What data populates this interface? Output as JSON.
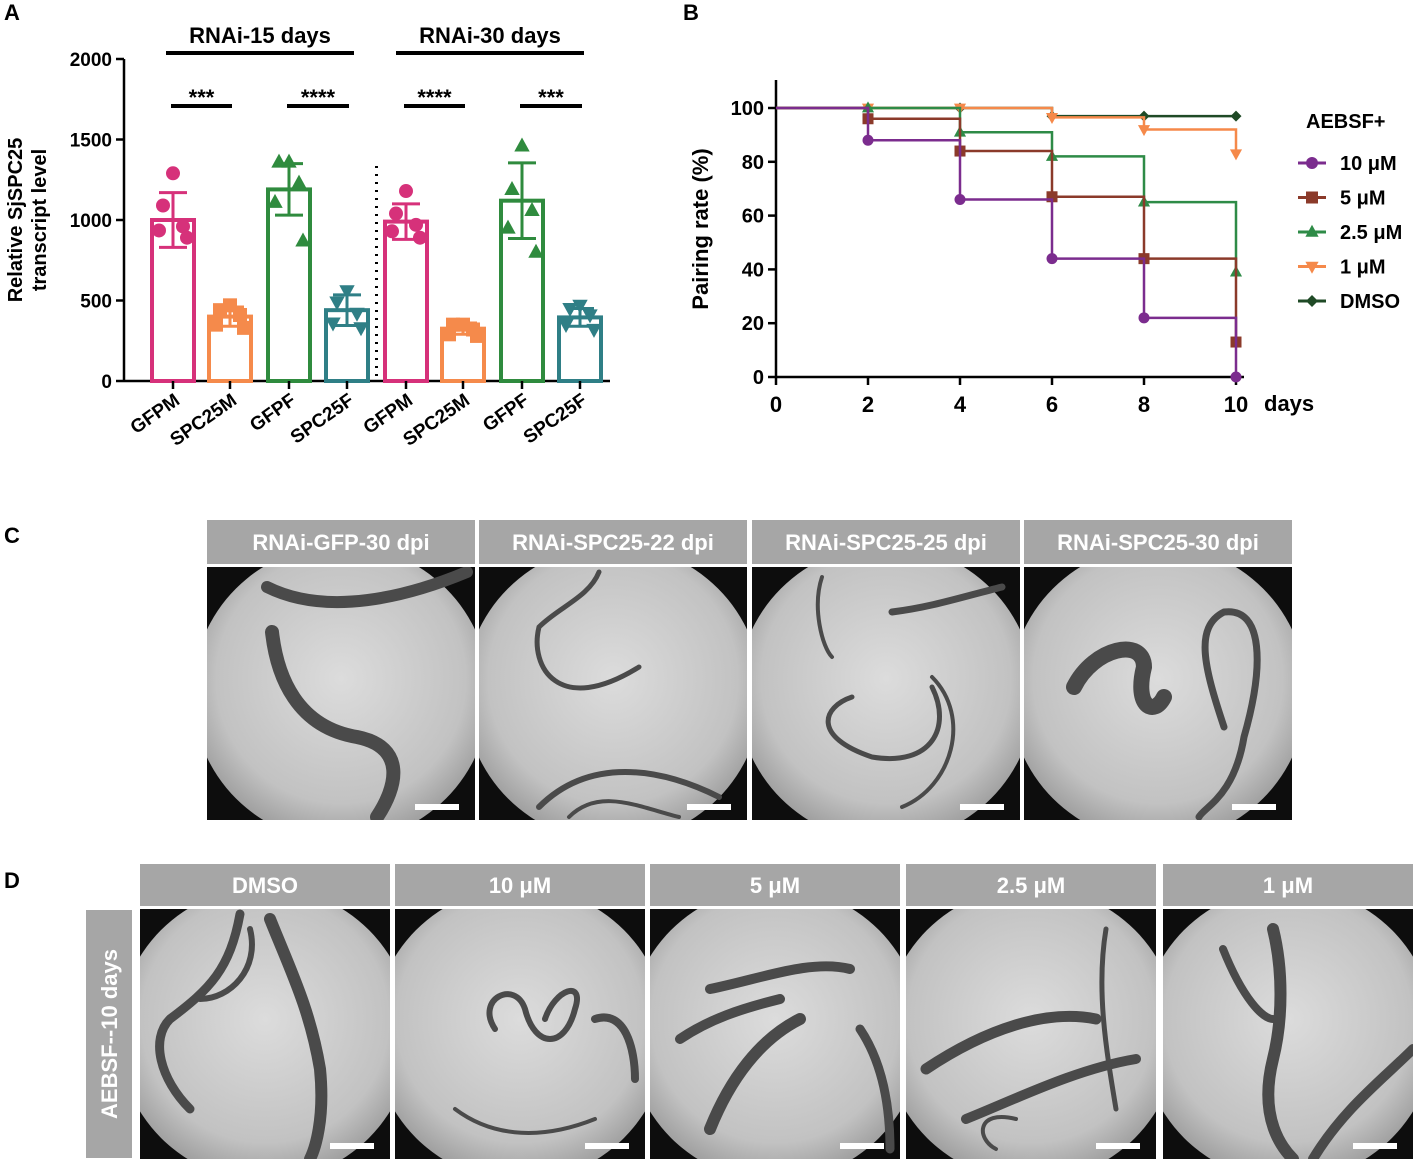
{
  "panel_letters": [
    "A",
    "B",
    "C",
    "D"
  ],
  "colors": {
    "gfpm": "#d6317a",
    "spc25m": "#f58a4b",
    "gfpf": "#2f8b3e",
    "spc25f": "#2f7f86",
    "ten_um": "#7b2c8e",
    "five_um": "#8b3a2a",
    "two5_um": "#2e8b47",
    "one_um": "#f5894a",
    "dmso": "#1f4a26",
    "tab_bg": "#a6a6a6"
  },
  "chart_data": [
    {
      "panel": "A",
      "type": "bar",
      "ylabel_lines": [
        "Relative SjSPC25",
        "transcript level"
      ],
      "ylim": [
        0,
        2000
      ],
      "yticks": [
        0,
        500,
        1000,
        1500,
        2000
      ],
      "groups": [
        {
          "label": "RNAi-15 days",
          "comparisons": [
            {
              "from": 0,
              "to": 1,
              "stars": "***"
            },
            {
              "from": 2,
              "to": 3,
              "stars": "****"
            }
          ]
        },
        {
          "label": "RNAi-30 days",
          "comparisons": [
            {
              "from": 4,
              "to": 5,
              "stars": "****"
            },
            {
              "from": 6,
              "to": 7,
              "stars": "***"
            }
          ]
        }
      ],
      "categories": [
        "GFPM",
        "SPC25M",
        "GFPF",
        "SPC25F",
        "GFPM",
        "SPC25M",
        "GFPF",
        "SPC25F"
      ],
      "values": [
        1000,
        400,
        1190,
        440,
        990,
        325,
        1120,
        395
      ],
      "sd": [
        170,
        60,
        160,
        95,
        110,
        35,
        235,
        55
      ],
      "marker": [
        "circle",
        "square",
        "triangle-up",
        "triangle-down",
        "circle",
        "square",
        "triangle-up",
        "triangle-down"
      ],
      "points": [
        [
          1290,
          1090,
          960,
          935,
          890
        ],
        [
          470,
          440,
          410,
          350,
          330
        ],
        [
          1360,
          1360,
          1230,
          1110,
          870
        ],
        [
          560,
          490,
          420,
          360,
          330
        ],
        [
          1180,
          1040,
          970,
          930,
          890
        ],
        [
          350,
          350,
          320,
          290,
          280
        ],
        [
          1460,
          1190,
          1060,
          950,
          800
        ],
        [
          470,
          450,
          410,
          350,
          320
        ]
      ],
      "divider_after": 3
    },
    {
      "panel": "B",
      "type": "line",
      "ylabel": "Pairing rate (%)",
      "xlabel": "days",
      "xlim": [
        0,
        10
      ],
      "ylim": [
        0,
        100
      ],
      "xticks": [
        0,
        2,
        4,
        6,
        8,
        10
      ],
      "yticks": [
        0,
        20,
        40,
        60,
        80,
        100
      ],
      "step": true,
      "legend_title": "AEBSF+",
      "series": [
        {
          "name": "10 μM",
          "marker": "circle",
          "x": [
            0,
            2,
            4,
            6,
            8,
            10
          ],
          "y": [
            100,
            88,
            66,
            44,
            22,
            0
          ]
        },
        {
          "name": "5 μM",
          "marker": "square",
          "x": [
            0,
            2,
            4,
            6,
            8,
            10
          ],
          "y": [
            100,
            96,
            84,
            67,
            44,
            13
          ]
        },
        {
          "name": "2.5 μM",
          "marker": "triangle-up",
          "x": [
            0,
            2,
            4,
            6,
            8,
            10
          ],
          "y": [
            100,
            100,
            91,
            82,
            65,
            39
          ]
        },
        {
          "name": "1 μM",
          "marker": "triangle-down",
          "x": [
            0,
            2,
            4,
            6,
            8,
            10
          ],
          "y": [
            100,
            100,
            100,
            96.5,
            92,
            83
          ]
        },
        {
          "name": "DMSO",
          "marker": "diamond",
          "x": [
            0,
            2,
            4,
            6,
            8,
            10
          ],
          "y": [
            100,
            100,
            100,
            97,
            97,
            97
          ]
        }
      ]
    }
  ],
  "panel_c": {
    "images": [
      {
        "label": "RNAi-GFP-30 dpi"
      },
      {
        "label": "RNAi-SPC25-22 dpi"
      },
      {
        "label": "RNAi-SPC25-25 dpi"
      },
      {
        "label": "RNAi-SPC25-30 dpi"
      }
    ]
  },
  "panel_d": {
    "side_label": "AEBSF--10 days",
    "images": [
      {
        "label": "DMSO"
      },
      {
        "label": "10 μM"
      },
      {
        "label": "5 μM"
      },
      {
        "label": "2.5 μM"
      },
      {
        "label": "1 μM"
      }
    ]
  }
}
